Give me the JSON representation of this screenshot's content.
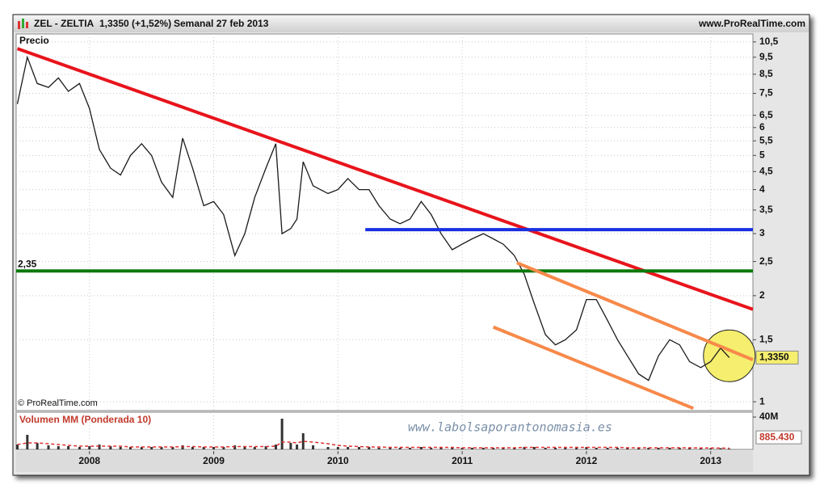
{
  "chart_data": [
    {
      "type": "line",
      "symbol": "ZEL - ZELTIA",
      "quote": "1,3350 (+1,52%)",
      "period": "Semanal 27 feb 2013",
      "source": "www.ProRealTime.com",
      "title": "Precio",
      "copyright": "© ProRealTime.com",
      "log_scale": true,
      "grid": true,
      "xlim": [
        2007.41,
        2013.34
      ],
      "ylim": [
        0.944,
        11.06
      ],
      "yticks": [
        1,
        {
          "value": 1.5,
          "label": "1,5"
        },
        2,
        {
          "value": 2.5,
          "label": "2,5"
        },
        3,
        {
          "value": 3.5,
          "label": "3,5"
        },
        4,
        {
          "value": 4.5,
          "label": "4,5"
        },
        5,
        {
          "value": 5.5,
          "label": "5,5"
        },
        6,
        {
          "value": 6.5,
          "label": "6,5"
        },
        {
          "value": 7.5,
          "label": "7,5"
        },
        {
          "value": 8.5,
          "label": "8,5"
        },
        {
          "value": 9.5,
          "label": "9,5"
        },
        {
          "value": 10.5,
          "label": "10,5"
        }
      ],
      "x": [
        2007.42,
        2007.5,
        2007.58,
        2007.67,
        2007.75,
        2007.83,
        2007.92,
        2008.0,
        2008.08,
        2008.17,
        2008.25,
        2008.33,
        2008.42,
        2008.5,
        2008.58,
        2008.67,
        2008.75,
        2008.83,
        2008.92,
        2009.0,
        2009.08,
        2009.17,
        2009.25,
        2009.33,
        2009.42,
        2009.5,
        2009.55,
        2009.62,
        2009.67,
        2009.72,
        2009.8,
        2009.92,
        2010.0,
        2010.08,
        2010.17,
        2010.25,
        2010.33,
        2010.42,
        2010.5,
        2010.58,
        2010.67,
        2010.75,
        2010.83,
        2010.92,
        2011.0,
        2011.08,
        2011.17,
        2011.25,
        2011.33,
        2011.42,
        2011.5,
        2011.58,
        2011.67,
        2011.75,
        2011.83,
        2011.92,
        2012.0,
        2012.08,
        2012.17,
        2012.25,
        2012.33,
        2012.42,
        2012.5,
        2012.58,
        2012.67,
        2012.75,
        2012.83,
        2012.92,
        2013.0,
        2013.08,
        2013.15
      ],
      "series": [
        {
          "color": "#1a1a1a",
          "values": [
            7.0,
            9.5,
            8.0,
            7.8,
            8.3,
            7.6,
            8.0,
            6.8,
            5.2,
            4.6,
            4.4,
            5.0,
            5.4,
            5.0,
            4.2,
            3.8,
            5.6,
            4.6,
            3.6,
            3.7,
            3.4,
            2.6,
            3.0,
            3.8,
            4.6,
            5.4,
            3.0,
            3.1,
            3.3,
            4.8,
            4.1,
            3.9,
            4.0,
            4.3,
            4.0,
            4.0,
            3.6,
            3.3,
            3.2,
            3.3,
            3.7,
            3.4,
            3.0,
            2.7,
            2.8,
            2.9,
            3.0,
            2.9,
            2.8,
            2.6,
            2.3,
            1.9,
            1.55,
            1.45,
            1.5,
            1.6,
            1.95,
            1.95,
            1.7,
            1.5,
            1.35,
            1.2,
            1.15,
            1.35,
            1.5,
            1.45,
            1.3,
            1.25,
            1.3,
            1.42,
            1.335
          ]
        }
      ],
      "last_price": {
        "value": 1.335,
        "label": "1,3350"
      },
      "lines": [
        {
          "color": "#e8141c",
          "x": [
            2007.42,
            2013.34
          ],
          "y": [
            10.05,
            1.83
          ]
        },
        {
          "color": "#1a2fe0",
          "x": [
            2010.22,
            2013.34
          ],
          "y": [
            3.08,
            3.08
          ]
        },
        {
          "color": "#0a7a0a",
          "x": [
            2007.41,
            2013.34
          ],
          "y": [
            2.35,
            2.35
          ],
          "label": "2,35"
        },
        {
          "color": "#f7894a",
          "x": [
            2011.44,
            2013.34
          ],
          "y": [
            2.48,
            1.316
          ]
        },
        {
          "color": "#f7894a",
          "x": [
            2011.25,
            2012.86
          ],
          "y": [
            1.63,
            0.958
          ]
        }
      ],
      "highlight": {
        "x": 2013.15,
        "y": 1.35,
        "color": "#f5ee6e"
      }
    },
    {
      "type": "bar",
      "title": "Volumen MM (Ponderada 10)",
      "watermark": "www.labolsaporantonomasia.es",
      "color": "#333333",
      "ma_color": "#e03030",
      "xlim": [
        2007.41,
        2013.34
      ],
      "xticks": [
        2008,
        2009,
        2010,
        2011,
        2012,
        2013
      ],
      "ylim": [
        0,
        46000000
      ],
      "yticks": [
        {
          "value": 40000000,
          "label": "40M"
        }
      ],
      "last_volume": {
        "value": 885430,
        "label": "885.430"
      },
      "x": [
        2007.42,
        2007.5,
        2007.58,
        2007.67,
        2007.75,
        2007.83,
        2007.92,
        2008.0,
        2008.08,
        2008.17,
        2008.25,
        2008.33,
        2008.42,
        2008.5,
        2008.58,
        2008.67,
        2008.75,
        2008.83,
        2008.92,
        2009.0,
        2009.08,
        2009.17,
        2009.25,
        2009.33,
        2009.42,
        2009.5,
        2009.55,
        2009.62,
        2009.67,
        2009.72,
        2009.8,
        2009.92,
        2010.0,
        2010.08,
        2010.17,
        2010.25,
        2010.33,
        2010.42,
        2010.5,
        2010.58,
        2010.67,
        2010.75,
        2010.83,
        2010.92,
        2011.0,
        2011.08,
        2011.17,
        2011.25,
        2011.33,
        2011.42,
        2011.5,
        2011.58,
        2011.67,
        2011.75,
        2011.83,
        2011.92,
        2012.0,
        2012.08,
        2012.17,
        2012.25,
        2012.33,
        2012.42,
        2012.5,
        2012.58,
        2012.67,
        2012.75,
        2012.83,
        2012.92,
        2013.0,
        2013.08,
        2013.15
      ],
      "values": [
        6000000,
        18000000,
        8000000,
        5000000,
        4000000,
        4000000,
        3000000,
        4000000,
        6000000,
        4000000,
        3000000,
        3000000,
        3000000,
        3000000,
        3000000,
        3000000,
        5000000,
        3000000,
        3000000,
        3000000,
        3000000,
        5000000,
        4000000,
        3000000,
        4000000,
        6000000,
        38000000,
        8000000,
        6000000,
        20000000,
        5000000,
        3000000,
        3000000,
        3000000,
        3000000,
        3000000,
        2000000,
        2000000,
        2000000,
        2000000,
        3000000,
        2000000,
        2000000,
        2000000,
        2000000,
        2000000,
        2000000,
        2000000,
        2000000,
        2000000,
        3000000,
        3000000,
        2000000,
        2000000,
        2000000,
        2000000,
        3000000,
        2000000,
        2000000,
        2000000,
        2000000,
        2000000,
        2000000,
        2000000,
        2000000,
        2000000,
        1500000,
        1500000,
        1500000,
        1500000,
        885430
      ],
      "ma": [
        6000000,
        8000000,
        8000000,
        7000000,
        6000000,
        5000000,
        4000000,
        4000000,
        4000000,
        4000000,
        4000000,
        3000000,
        3000000,
        3000000,
        3000000,
        3000000,
        3500000,
        3500000,
        3000000,
        3000000,
        3000000,
        3500000,
        3500000,
        3500000,
        3500000,
        4000000,
        9000000,
        9000000,
        8000000,
        10000000,
        9000000,
        7000000,
        5000000,
        4000000,
        3500000,
        3000000,
        3000000,
        2500000,
        2500000,
        2500000,
        2500000,
        2500000,
        2500000,
        2500000,
        2000000,
        2000000,
        2000000,
        2000000,
        2000000,
        2000000,
        2500000,
        2500000,
        2500000,
        2500000,
        2500000,
        2500000,
        2500000,
        2500000,
        2500000,
        2500000,
        2000000,
        2000000,
        2000000,
        2000000,
        2000000,
        2000000,
        2000000,
        1800000,
        1800000,
        1600000,
        1500000
      ]
    }
  ]
}
